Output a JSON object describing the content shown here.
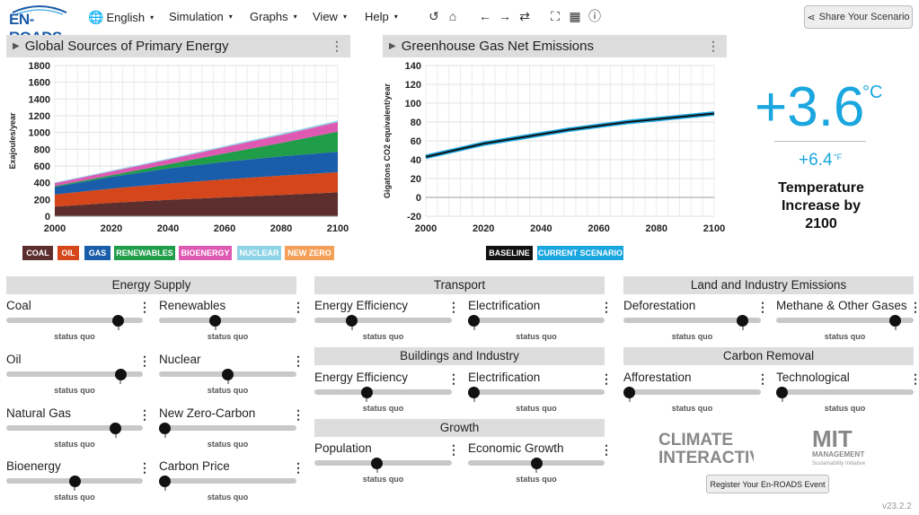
{
  "app": {
    "logo_text": "EN-ROADS",
    "version": "v23.2.2"
  },
  "menu": [
    {
      "label": "English",
      "icon": "globe-icon"
    },
    {
      "label": "Simulation"
    },
    {
      "label": "Graphs"
    },
    {
      "label": "View"
    },
    {
      "label": "Help"
    }
  ],
  "toolbar_icons": [
    "undo-icon",
    "home-icon",
    "back-icon",
    "forward-icon",
    "repeat-icon",
    "fullscreen-icon",
    "table-icon",
    "info-icon"
  ],
  "share_button": {
    "label": "Share Your Scenario",
    "icon": "share-icon"
  },
  "panels": {
    "left": {
      "title": "Global Sources of Primary Energy"
    },
    "right": {
      "title": "Greenhouse Gas Net Emissions"
    }
  },
  "chart_data": [
    {
      "type": "area",
      "title": "Global Sources of Primary Energy",
      "ylabel": "Exajoules/year",
      "x": [
        2000,
        2020,
        2040,
        2060,
        2080,
        2100
      ],
      "xlim": [
        2000,
        2100
      ],
      "ylim": [
        0,
        1800
      ],
      "yticks": [
        0,
        200,
        400,
        600,
        800,
        1000,
        1200,
        1400,
        1600,
        1800
      ],
      "xticks": [
        2000,
        2020,
        2040,
        2060,
        2080,
        2100
      ],
      "stacked": true,
      "series": [
        {
          "name": "COAL",
          "color": "#5c2e2e",
          "values": [
            115,
            160,
            195,
            225,
            255,
            285
          ]
        },
        {
          "name": "OIL",
          "color": "#d5461b",
          "values": [
            145,
            170,
            195,
            215,
            230,
            240
          ]
        },
        {
          "name": "GAS",
          "color": "#1a5eab",
          "values": [
            90,
            140,
            180,
            210,
            230,
            245
          ]
        },
        {
          "name": "RENEWABLES",
          "color": "#1f9d49",
          "values": [
            10,
            20,
            50,
            100,
            160,
            240
          ]
        },
        {
          "name": "BIOENERGY",
          "color": "#de5ab2",
          "values": [
            35,
            45,
            55,
            75,
            95,
            115
          ]
        },
        {
          "name": "NUCLEAR",
          "color": "#8ed3e6",
          "values": [
            8,
            10,
            12,
            14,
            16,
            18
          ]
        },
        {
          "name": "NEW ZERO",
          "color": "#f4a058",
          "values": [
            0,
            0,
            0,
            0,
            0,
            0
          ]
        }
      ],
      "grid": true
    },
    {
      "type": "line",
      "title": "Greenhouse Gas Net Emissions",
      "ylabel": "Gigatons CO2 equivalent/year",
      "x": [
        2000,
        2010,
        2020,
        2030,
        2040,
        2050,
        2060,
        2070,
        2080,
        2090,
        2100
      ],
      "xlim": [
        2000,
        2100
      ],
      "ylim": [
        -20,
        140
      ],
      "yticks": [
        -20,
        0,
        20,
        40,
        60,
        80,
        100,
        120,
        140
      ],
      "xticks": [
        2000,
        2020,
        2040,
        2060,
        2080,
        2100
      ],
      "series": [
        {
          "name": "BASELINE",
          "color": "#111111",
          "values": [
            43,
            50,
            57,
            62,
            67,
            72,
            76,
            80,
            83,
            86,
            89
          ]
        },
        {
          "name": "CURRENT SCENARIO",
          "color": "#1aa6df",
          "values": [
            43,
            50,
            57,
            62,
            67,
            72,
            76,
            80,
            83,
            86,
            89
          ]
        }
      ],
      "grid": true
    }
  ],
  "temperature": {
    "celsius": "+3.6",
    "celsius_unit": "°C",
    "fahrenheit": "+6.4",
    "fahrenheit_unit": "°F",
    "label_line1": "Temperature",
    "label_line2": "Increase by",
    "label_line3": "2100",
    "color": "#1aa6df"
  },
  "sections": {
    "energy_supply": "Energy Supply",
    "transport": "Transport",
    "buildings": "Buildings and Industry",
    "growth": "Growth",
    "land": "Land and Industry Emissions",
    "carbon_removal": "Carbon Removal"
  },
  "sliders": {
    "coal": {
      "label": "Coal",
      "status": "status quo",
      "level": 0.85
    },
    "renewables": {
      "label": "Renewables",
      "status": "status quo",
      "level": 0.4
    },
    "oil": {
      "label": "Oil",
      "status": "status quo",
      "level": 0.87
    },
    "nuclear": {
      "label": "Nuclear",
      "status": "status quo",
      "level": 0.5
    },
    "natural_gas": {
      "label": "Natural Gas",
      "status": "status quo",
      "level": 0.83
    },
    "new_zero_carbon": {
      "label": "New Zero-Carbon",
      "status": "status quo",
      "level": 0.0
    },
    "bioenergy": {
      "label": "Bioenergy",
      "status": "status quo",
      "level": 0.5
    },
    "carbon_price": {
      "label": "Carbon Price",
      "status": "status quo",
      "level": 0.0
    },
    "transport_efficiency": {
      "label": "Energy Efficiency",
      "status": "status quo",
      "level": 0.25
    },
    "transport_electrification": {
      "label": "Electrification",
      "status": "status quo",
      "level": 0.0
    },
    "buildings_efficiency": {
      "label": "Energy Efficiency",
      "status": "status quo",
      "level": 0.37
    },
    "buildings_electrification": {
      "label": "Electrification",
      "status": "status quo",
      "level": 0.0
    },
    "population": {
      "label": "Population",
      "status": "status quo",
      "level": 0.45
    },
    "economic_growth": {
      "label": "Economic Growth",
      "status": "status quo",
      "level": 0.5
    },
    "deforestation": {
      "label": "Deforestation",
      "status": "status quo",
      "level": 0.9
    },
    "methane": {
      "label": "Methane & Other Gases",
      "status": "status quo",
      "level": 0.9
    },
    "afforestation": {
      "label": "Afforestation",
      "status": "status quo",
      "level": 0.0
    },
    "technological": {
      "label": "Technological",
      "status": "status quo",
      "level": 0.0
    }
  },
  "logos": {
    "climate_interactive_1": "CLIMATE",
    "climate_interactive_2": "INTERACTIVE",
    "mit_1": "MIT",
    "mit_2": "MANAGEMENT",
    "mit_3": "Sustainability Initiative"
  },
  "register_button": {
    "label": "Register Your En-ROADS Event"
  }
}
